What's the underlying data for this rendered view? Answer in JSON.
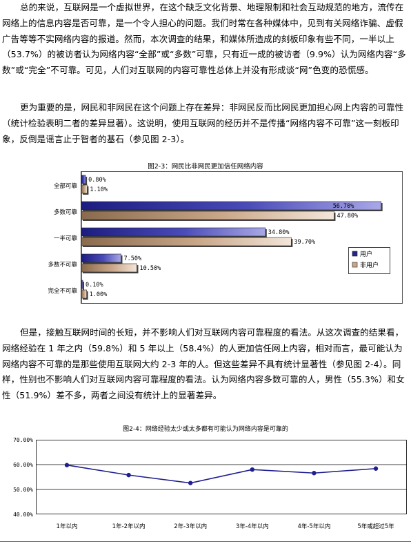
{
  "paragraphs": [
    "总的来说，互联网是一个虚拟世界，在这个缺乏文化背景、地理限制和社会互动规范的地方，流传在网络上的信息内容是否可靠，是一个令人担心的问题。我们时常在各种媒体中，见到有关网络诈骗、虚假广告等等不实网络内容的报道。然而，本次调查的结果，和媒体所造成的刻板印象有些不同，一半以上（53.7%）的被访者认为网络内容“全部”或“多数”可靠，只有近一成的被访者（9.9%）认为网络内容“多数”或“完全”不可靠。可见，人们对互联网的内容可靠性总体上并没有形成谈“网”色变的恐慌感。",
    "更为重要的是，网民和非网民在这个问题上存在差异：非网民反而比网民更加担心网上内容的可靠性（统计检验表明二者的差异显著）。这说明，使用互联网的经历并不是传播“网络内容不可靠”这一刻板印象，反倒是谣言止于智者的基石（参见图 2-3）。",
    "但是，接触互联网时间的长短，并不影响人们对互联网内容可靠程度的看法。从这次调查的结果看，网络经验在 1 年之内（59.8%）和 5 年以上（58.4%）的人更加信任网上内容，相对而言，最可能认为网络内容不可靠的是那些使用互联网大约 2-3 年的人。但这些差异不具有统计显著性（参见图 2-4）。同样，性别也不影响人们对互联网内容可靠程度的看法。认为网络内容多数可靠的人，男性（55.3%）和女性（51.9%）差不多，两者之间没有统计上的显著差异。"
  ],
  "chart_data": [
    {
      "type": "bar",
      "orientation": "horizontal",
      "title": "图2-3：网民比非网民更加信任网络内容",
      "categories": [
        "全部可靠",
        "多数可靠",
        "一半可靠",
        "多数不可靠",
        "完全不可靠"
      ],
      "series": [
        {
          "name": "用户",
          "values": [
            0.8,
            56.7,
            34.8,
            7.5,
            0.1
          ],
          "labels": [
            "0.80%",
            "56.70%",
            "34.80%",
            "7.50%",
            "0.10%"
          ]
        },
        {
          "name": "非用户",
          "values": [
            1.1,
            47.8,
            39.7,
            10.5,
            1.0
          ],
          "labels": [
            "1.10%",
            "47.80%",
            "39.70%",
            "10.50%",
            "1.00%"
          ]
        }
      ],
      "xlim": [
        0,
        57
      ],
      "legend_position": "right",
      "colors": {
        "用户": "#26268a",
        "非用户": "#b48a6a"
      }
    },
    {
      "type": "line",
      "title": "图2-4：网络经验太少或太多都有可能认为网络内容是可靠的",
      "categories": [
        "1年以内",
        "1年-2年以内",
        "2年-3年以内",
        "3年-4年以内",
        "4年-5年以内",
        "5年或超过5年"
      ],
      "series": [
        {
          "values": [
            59.8,
            55.8,
            52.6,
            58.0,
            56.6,
            58.4
          ]
        }
      ],
      "yticks": [
        "40.00%",
        "50.00%",
        "60.00%",
        "70.00%"
      ],
      "ylim": [
        40,
        70
      ],
      "grid": true,
      "colors": {
        "line": "#1f1f8f"
      }
    }
  ]
}
